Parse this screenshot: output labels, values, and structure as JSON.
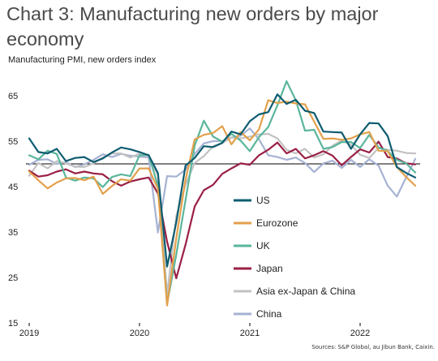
{
  "title": "Chart 3: Manufacturing new orders by major economy",
  "subtitle": "Manufacturing PMI, new orders index",
  "source": "Sources: S&P Global, au Jibun Bank, Caixin.",
  "chart_data": {
    "type": "line",
    "title": "Chart 3: Manufacturing new orders by major economy",
    "ylabel": "Manufacturing PMI, new orders index",
    "ylim": [
      15,
      70
    ],
    "xlim": [
      "2019-01",
      "2022-07"
    ],
    "yticks": [
      15,
      25,
      35,
      45,
      55,
      65
    ],
    "xticks": [
      "2019",
      "2020",
      "2021",
      "2022"
    ],
    "reference_line": 50,
    "grid": false,
    "legend_position": "inside-center",
    "x": [
      "2019-01",
      "2019-02",
      "2019-03",
      "2019-04",
      "2019-05",
      "2019-06",
      "2019-07",
      "2019-08",
      "2019-09",
      "2019-10",
      "2019-11",
      "2019-12",
      "2020-01",
      "2020-02",
      "2020-03",
      "2020-04",
      "2020-05",
      "2020-06",
      "2020-07",
      "2020-08",
      "2020-09",
      "2020-10",
      "2020-11",
      "2020-12",
      "2021-01",
      "2021-02",
      "2021-03",
      "2021-04",
      "2021-05",
      "2021-06",
      "2021-07",
      "2021-08",
      "2021-09",
      "2021-10",
      "2021-11",
      "2021-12",
      "2022-01",
      "2022-02",
      "2022-03",
      "2022-04",
      "2022-05",
      "2022-06",
      "2022-07"
    ],
    "series": [
      {
        "name": "US",
        "color": "#0e5c70",
        "values": [
          55.6,
          52.6,
          52.3,
          53.3,
          50.6,
          51.3,
          51.5,
          50.4,
          51.2,
          52.5,
          53.6,
          53.2,
          52.6,
          51.9,
          48.0,
          27.4,
          37.1,
          49.6,
          51.3,
          53.9,
          53.7,
          54.6,
          57.1,
          56.5,
          59.4,
          60.9,
          61.4,
          65.3,
          63.2,
          64.1,
          61.7,
          61.2,
          57.1,
          57.0,
          56.9,
          53.3,
          56.5,
          59.0,
          58.9,
          56.1,
          49.3,
          48.0,
          47.0
        ]
      },
      {
        "name": "Eurozone",
        "color": "#e3a04c",
        "values": [
          48.3,
          46.4,
          44.6,
          45.9,
          46.8,
          46.9,
          46.4,
          47.2,
          43.4,
          45.1,
          46.6,
          46.3,
          49.0,
          49.0,
          44.5,
          18.8,
          33.6,
          46.5,
          55.4,
          56.4,
          56.8,
          58.3,
          54.3,
          57.0,
          55.2,
          57.6,
          64.0,
          63.4,
          63.7,
          63.3,
          63.1,
          59.3,
          55.5,
          55.6,
          55.3,
          55.6,
          56.5,
          57.0,
          52.9,
          52.8,
          49.3,
          47.1,
          45.2
        ]
      },
      {
        "name": "UK",
        "color": "#5ab69c",
        "values": [
          51.9,
          51.0,
          52.9,
          52.2,
          47.0,
          46.3,
          47.0,
          46.8,
          44.9,
          47.1,
          47.7,
          47.3,
          51.9,
          52.0,
          45.2,
          19.2,
          30.0,
          42.0,
          54.0,
          59.5,
          56.0,
          54.9,
          56.6,
          55.1,
          52.8,
          55.9,
          58.1,
          62.9,
          68.2,
          64.0,
          57.3,
          57.5,
          53.3,
          53.7,
          54.8,
          54.8,
          53.5,
          56.4,
          53.6,
          52.8,
          50.9,
          50.1,
          48.1
        ]
      },
      {
        "name": "Japan",
        "color": "#9a2045",
        "values": [
          48.5,
          47.2,
          47.5,
          48.3,
          48.8,
          47.9,
          48.3,
          47.9,
          47.7,
          46.2,
          45.2,
          46.1,
          46.6,
          47.0,
          43.5,
          32.9,
          24.8,
          32.2,
          40.6,
          44.2,
          45.4,
          47.8,
          49.0,
          50.1,
          49.8,
          51.9,
          53.1,
          54.7,
          52.3,
          53.3,
          51.2,
          51.9,
          52.8,
          51.8,
          49.7,
          51.5,
          53.2,
          52.5,
          54.9,
          51.5,
          51.2,
          50.1,
          49.9
        ]
      },
      {
        "name": "Asia ex-Japan & China",
        "color": "#c2c2c2",
        "values": [
          47.4,
          50.2,
          49.0,
          50.6,
          50.1,
          49.4,
          49.3,
          50.1,
          51.4,
          52.3,
          52.3,
          51.4,
          52.3,
          51.5,
          47.5,
          21.3,
          38.5,
          45.4,
          50.2,
          51.7,
          53.9,
          54.6,
          55.8,
          55.6,
          56.0,
          56.5,
          56.6,
          55.6,
          53.1,
          52.3,
          53.3,
          51.4,
          52.1,
          54.0,
          55.2,
          54.2,
          52.0,
          51.3,
          53.5,
          53.1,
          52.9,
          52.4,
          52.3
        ]
      },
      {
        "name": "China",
        "color": "#a6b2d3",
        "values": [
          49.8,
          50.9,
          51.0,
          50.0,
          50.4,
          49.3,
          49.9,
          50.9,
          52.1,
          51.5,
          52.2,
          51.8,
          51.6,
          51.4,
          34.9,
          47.3,
          47.2,
          48.7,
          52.2,
          54.5,
          55.0,
          55.0,
          55.8,
          56.2,
          57.8,
          55.4,
          51.9,
          51.5,
          50.9,
          51.4,
          50.2,
          48.2,
          50.1,
          50.7,
          49.1,
          50.9,
          49.3,
          51.0,
          49.6,
          45.2,
          42.8,
          47.0,
          51.1
        ]
      }
    ]
  }
}
